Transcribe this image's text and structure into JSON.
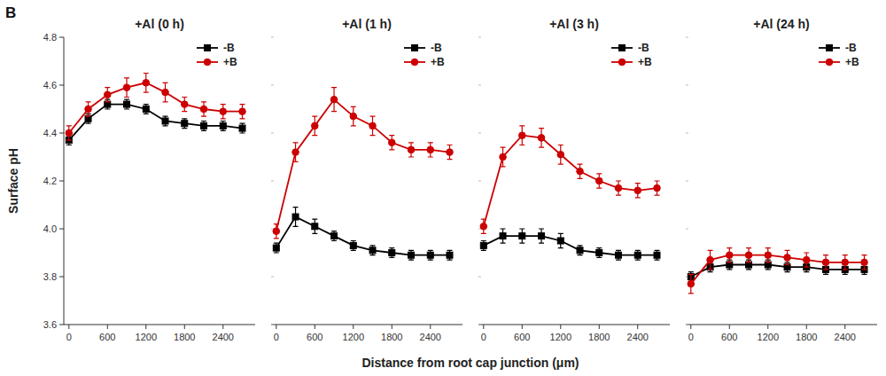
{
  "chart_data": [
    {
      "type": "line",
      "title": "+Al (0 h)",
      "annotations": [
        "B"
      ],
      "xlabel": "Distance from root cap junction (μm)",
      "ylabel": "Surface pH",
      "x": [
        0,
        300,
        600,
        900,
        1200,
        1500,
        1800,
        2100,
        2400,
        2700
      ],
      "series": [
        {
          "name": "-B",
          "color": "#000000",
          "marker": "square",
          "values": [
            4.37,
            4.46,
            4.52,
            4.52,
            4.5,
            4.45,
            4.44,
            4.43,
            4.43,
            4.42
          ],
          "errors": [
            0.02,
            0.02,
            0.02,
            0.02,
            0.02,
            0.02,
            0.02,
            0.02,
            0.02,
            0.02
          ]
        },
        {
          "name": "+B",
          "color": "#cc0000",
          "marker": "circle",
          "values": [
            4.4,
            4.5,
            4.56,
            4.59,
            4.61,
            4.57,
            4.52,
            4.5,
            4.49,
            4.49
          ],
          "errors": [
            0.03,
            0.03,
            0.03,
            0.04,
            0.04,
            0.04,
            0.03,
            0.03,
            0.03,
            0.03
          ]
        }
      ],
      "xlim": [
        -80,
        2900
      ],
      "xticks": [
        0,
        600,
        1200,
        1800,
        2400
      ],
      "ylim": [
        3.6,
        4.8
      ],
      "yticks": [
        3.6,
        3.8,
        {
          "value": 4.0,
          "label": "4.0"
        },
        4.2,
        4.4,
        4.6,
        4.8
      ],
      "grid": false,
      "legend": "upper right"
    },
    {
      "type": "line",
      "title": "+Al (1 h)",
      "x": [
        0,
        300,
        600,
        900,
        1200,
        1500,
        1800,
        2100,
        2400,
        2700
      ],
      "series": [
        {
          "name": "-B",
          "color": "#000000",
          "marker": "square",
          "values": [
            3.92,
            4.05,
            4.01,
            3.97,
            3.93,
            3.91,
            3.9,
            3.89,
            3.89,
            3.89
          ],
          "errors": [
            0.02,
            0.04,
            0.03,
            0.02,
            0.02,
            0.02,
            0.02,
            0.02,
            0.02,
            0.02
          ]
        },
        {
          "name": "+B",
          "color": "#cc0000",
          "marker": "circle",
          "values": [
            3.99,
            4.32,
            4.43,
            4.54,
            4.47,
            4.43,
            4.36,
            4.33,
            4.33,
            4.32
          ],
          "errors": [
            0.03,
            0.04,
            0.04,
            0.05,
            0.04,
            0.04,
            0.03,
            0.03,
            0.03,
            0.03
          ]
        }
      ],
      "xlim": [
        -80,
        2900
      ],
      "xticks": [
        0,
        600,
        1200,
        1800,
        2400
      ],
      "ylim": [
        3.6,
        4.8
      ],
      "yticks": [
        3.6,
        3.8,
        {
          "value": 4.0,
          "label": "4.0"
        },
        4.2,
        4.4,
        4.6,
        4.8
      ],
      "grid": false,
      "legend": "upper right",
      "tick_labels": "x"
    },
    {
      "type": "line",
      "title": "+Al (3 h)",
      "x": [
        0,
        300,
        600,
        900,
        1200,
        1500,
        1800,
        2100,
        2400,
        2700
      ],
      "series": [
        {
          "name": "-B",
          "color": "#000000",
          "marker": "square",
          "values": [
            3.93,
            3.97,
            3.97,
            3.97,
            3.95,
            3.91,
            3.9,
            3.89,
            3.89,
            3.89
          ],
          "errors": [
            0.02,
            0.03,
            0.03,
            0.03,
            0.03,
            0.02,
            0.02,
            0.02,
            0.02,
            0.02
          ]
        },
        {
          "name": "+B",
          "color": "#cc0000",
          "marker": "circle",
          "values": [
            4.01,
            4.3,
            4.39,
            4.38,
            4.31,
            4.24,
            4.2,
            4.17,
            4.16,
            4.17
          ],
          "errors": [
            0.03,
            0.04,
            0.04,
            0.04,
            0.04,
            0.03,
            0.03,
            0.03,
            0.03,
            0.03
          ]
        }
      ],
      "xlim": [
        -80,
        2900
      ],
      "xticks": [
        0,
        600,
        1200,
        1800,
        2400
      ],
      "ylim": [
        3.6,
        4.8
      ],
      "yticks": [
        3.6,
        3.8,
        {
          "value": 4.0,
          "label": "4.0"
        },
        4.2,
        4.4,
        4.6,
        4.8
      ],
      "grid": false,
      "legend": "upper right",
      "tick_labels": "x"
    },
    {
      "type": "line",
      "title": "+Al (24 h)",
      "x": [
        0,
        300,
        600,
        900,
        1200,
        1500,
        1800,
        2100,
        2400,
        2700
      ],
      "series": [
        {
          "name": "-B",
          "color": "#000000",
          "marker": "square",
          "values": [
            3.8,
            3.84,
            3.85,
            3.85,
            3.85,
            3.84,
            3.84,
            3.83,
            3.83,
            3.83
          ],
          "errors": [
            0.02,
            0.02,
            0.02,
            0.02,
            0.02,
            0.02,
            0.02,
            0.02,
            0.02,
            0.02
          ]
        },
        {
          "name": "+B",
          "color": "#cc0000",
          "marker": "circle",
          "values": [
            3.77,
            3.87,
            3.89,
            3.89,
            3.89,
            3.88,
            3.87,
            3.86,
            3.86,
            3.86
          ],
          "errors": [
            0.04,
            0.04,
            0.03,
            0.03,
            0.03,
            0.03,
            0.03,
            0.03,
            0.03,
            0.03
          ]
        }
      ],
      "xlim": [
        -80,
        2900
      ],
      "xticks": [
        0,
        600,
        1200,
        1800,
        2400
      ],
      "ylim": [
        3.6,
        4.8
      ],
      "yticks": [
        3.6,
        3.8,
        {
          "value": 4.0,
          "label": "4.0"
        },
        4.2,
        4.4,
        4.6,
        4.8
      ],
      "grid": false,
      "legend": "upper right",
      "tick_labels": "x"
    }
  ]
}
